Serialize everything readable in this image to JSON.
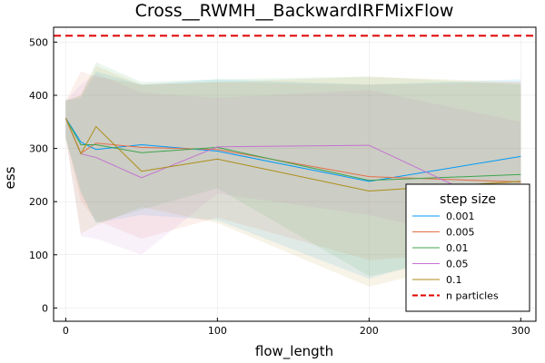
{
  "chart_data": {
    "type": "line",
    "title": "Cross__RWMH__BackwardIRFMixFlow",
    "xlabel": "flow_length",
    "ylabel": "ess",
    "xlim": [
      -8,
      310
    ],
    "ylim": [
      -25,
      528
    ],
    "xticks": [
      0,
      100,
      200,
      300
    ],
    "yticks": [
      0,
      100,
      200,
      300,
      400,
      500
    ],
    "grid": true,
    "legend": {
      "title": "step size",
      "placement": "bottom-right"
    },
    "x": [
      0,
      10,
      20,
      50,
      100,
      200,
      300
    ],
    "series": [
      {
        "name": "0.001",
        "color": "#009AFA",
        "values": [
          357,
          312,
          298,
          307,
          295,
          238,
          285
        ],
        "lower": [
          320,
          220,
          160,
          175,
          165,
          55,
          140
        ],
        "upper": [
          390,
          395,
          445,
          420,
          430,
          420,
          430
        ]
      },
      {
        "name": "0.005",
        "color": "#E36F47",
        "values": [
          357,
          291,
          310,
          302,
          298,
          247,
          237
        ],
        "lower": [
          320,
          200,
          165,
          130,
          170,
          90,
          110
        ],
        "upper": [
          390,
          445,
          435,
          420,
          425,
          420,
          425
        ]
      },
      {
        "name": "0.01",
        "color": "#3EA44E",
        "values": [
          357,
          307,
          307,
          292,
          302,
          240,
          251
        ],
        "lower": [
          320,
          215,
          160,
          185,
          225,
          60,
          115
        ],
        "upper": [
          390,
          400,
          462,
          425,
          430,
          435,
          420
        ]
      },
      {
        "name": "0.05",
        "color": "#C271D2",
        "values": [
          357,
          290,
          283,
          245,
          303,
          306,
          172
        ],
        "lower": [
          320,
          135,
          130,
          100,
          215,
          175,
          110
        ],
        "upper": [
          390,
          420,
          440,
          405,
          395,
          410,
          350
        ]
      },
      {
        "name": "0.1",
        "color": "#AC8D18",
        "values": [
          357,
          290,
          341,
          257,
          280,
          220,
          238
        ],
        "lower": [
          320,
          140,
          155,
          190,
          160,
          40,
          110
        ],
        "upper": [
          390,
          400,
          455,
          420,
          425,
          435,
          425
        ]
      }
    ],
    "reference_line": {
      "name": "n particles",
      "value": 512,
      "color": "#E00000",
      "style": "dashed"
    }
  }
}
